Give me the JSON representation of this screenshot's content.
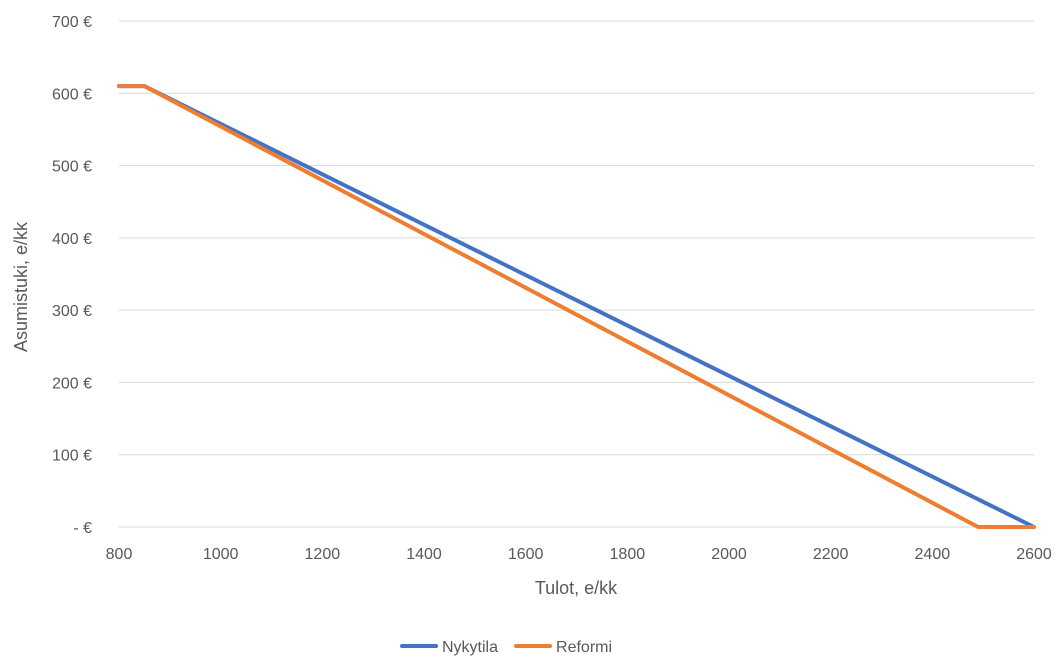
{
  "chart_data": {
    "type": "line",
    "title": "",
    "xlabel": "Tulot, e/kk",
    "ylabel": "Asumistuki, e/kk",
    "xlim": [
      800,
      2600
    ],
    "ylim": [
      0,
      700
    ],
    "x_ticks": [
      800,
      1000,
      1200,
      1400,
      1600,
      1800,
      2000,
      2200,
      2400,
      2600
    ],
    "y_ticks": [
      {
        "value": 0,
        "label": "-  €"
      },
      {
        "value": 100,
        "label": "100 €"
      },
      {
        "value": 200,
        "label": "200 €"
      },
      {
        "value": 300,
        "label": "300 €"
      },
      {
        "value": 400,
        "label": "400 €"
      },
      {
        "value": 500,
        "label": "500 €"
      },
      {
        "value": 600,
        "label": "600 €"
      },
      {
        "value": 700,
        "label": "700 €"
      }
    ],
    "grid": "horizontal",
    "legend_position": "bottom",
    "series": [
      {
        "name": "Nykytila",
        "color": "#4472C4",
        "points": [
          [
            800,
            610
          ],
          [
            850,
            610
          ],
          [
            2600,
            0
          ]
        ]
      },
      {
        "name": "Reformi",
        "color": "#ED7D31",
        "points": [
          [
            800,
            610
          ],
          [
            850,
            610
          ],
          [
            2490,
            0
          ],
          [
            2600,
            0
          ]
        ]
      }
    ]
  }
}
